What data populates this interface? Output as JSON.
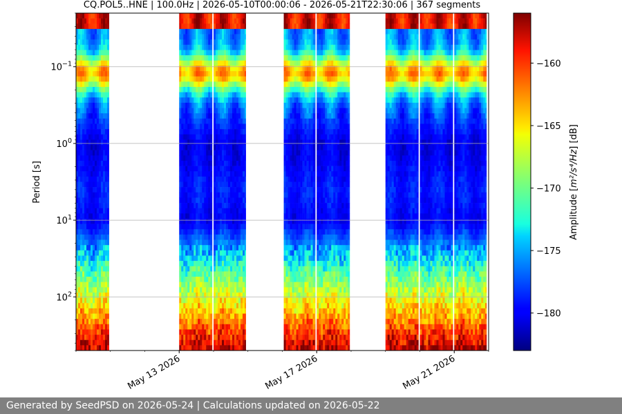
{
  "chart_data": {
    "type": "heatmap",
    "title": "CQ.POL5..HNE | 100.0Hz | 2026-05-10T00:00:06 - 2026-05-21T22:30:06 | 367 segments",
    "ylabel": "Period [s]",
    "xlabel": "",
    "y_scale": "log",
    "y_inverted": true,
    "ylim": [
      0.02,
      500
    ],
    "xlim": [
      "2026-05-10T00:00:00",
      "2026-05-22T00:00:00"
    ],
    "x_ticks": [
      {
        "date": "2026-05-13",
        "label": "May 13 2026"
      },
      {
        "date": "2026-05-17",
        "label": "May 17 2026"
      },
      {
        "date": "2026-05-21",
        "label": "May 21 2026"
      }
    ],
    "y_ticks": [
      {
        "value": 0.1,
        "base": "10",
        "exp": "−1"
      },
      {
        "value": 1,
        "base": "10",
        "exp": "0"
      },
      {
        "value": 10,
        "base": "10",
        "exp": "1"
      },
      {
        "value": 100,
        "base": "10",
        "exp": "2"
      }
    ],
    "grid": "horizontal",
    "colormap": "jet",
    "colorbar": {
      "label_prefix": "Amplitude [",
      "label_unit": "m²/s⁴/Hz",
      "label_suffix": "] [dB]",
      "range": [
        -183,
        -156
      ],
      "ticks": [
        -160,
        -165,
        -170,
        -175,
        -180
      ]
    },
    "data_segments": [
      {
        "start": "2026-05-10T00:00:00",
        "end": "2026-05-10T23:00:00"
      },
      {
        "start": "2026-05-13T00:00:00",
        "end": "2026-05-13T23:00:00"
      },
      {
        "start": "2026-05-14T00:00:00",
        "end": "2026-05-14T22:30:00"
      },
      {
        "start": "2026-05-16T01:00:00",
        "end": "2026-05-16T23:00:00"
      },
      {
        "start": "2026-05-17T00:00:00",
        "end": "2026-05-17T23:00:00"
      },
      {
        "start": "2026-05-19T00:00:00",
        "end": "2026-05-19T23:00:00"
      },
      {
        "start": "2026-05-20T00:00:00",
        "end": "2026-05-20T23:00:00"
      },
      {
        "start": "2026-05-21T00:00:00",
        "end": "2026-05-21T22:30:00"
      }
    ],
    "segments_count": 367
  },
  "footer": {
    "text": "Generated by SeedPSD on 2026-05-24 | Calculations updated on 2026-05-22"
  }
}
